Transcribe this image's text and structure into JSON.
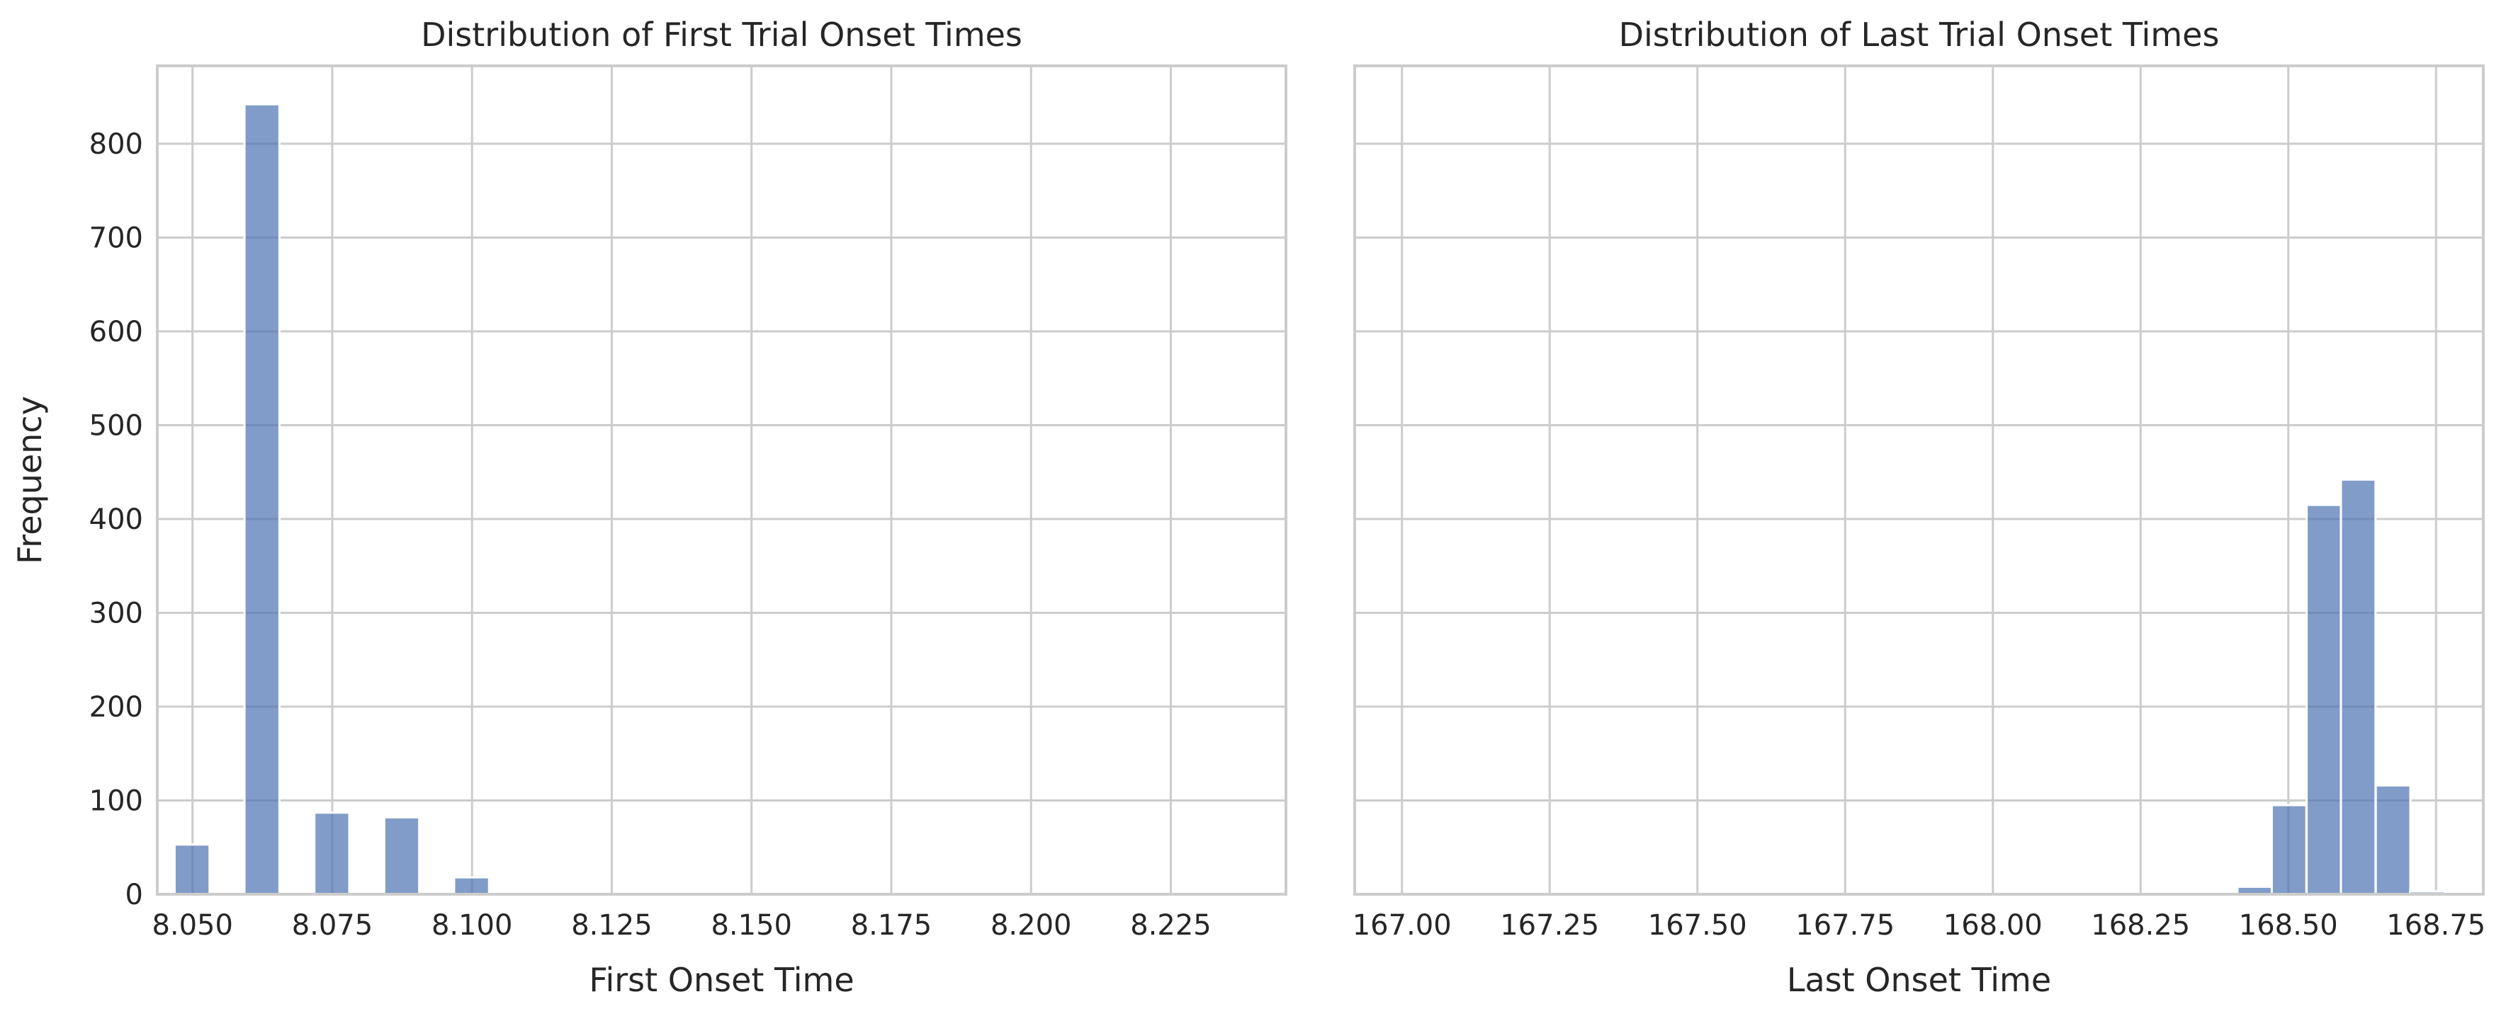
{
  "chart_data": [
    {
      "type": "bar",
      "title": "Distribution of First Trial Onset Times",
      "xlabel": "First Onset Time",
      "ylabel": "Frequency",
      "xlim": [
        8.0437,
        8.2456
      ],
      "ylim": [
        0,
        883
      ],
      "xticks": [
        "8.050",
        "8.075",
        "8.100",
        "8.125",
        "8.150",
        "8.175",
        "8.200",
        "8.225"
      ],
      "xtick_values": [
        8.05,
        8.075,
        8.1,
        8.125,
        8.15,
        8.175,
        8.2,
        8.225
      ],
      "yticks": [
        "0",
        "100",
        "200",
        "300",
        "400",
        "500",
        "600",
        "700",
        "800"
      ],
      "ytick_values": [
        0,
        100,
        200,
        300,
        400,
        500,
        600,
        700,
        800
      ],
      "bin_width": 0.00625,
      "bins_start": [
        8.0468,
        8.0593,
        8.0718,
        8.0843,
        8.0968
      ],
      "values": [
        53,
        842,
        87,
        82,
        18
      ],
      "grid": true,
      "color": "#4c72b0"
    },
    {
      "type": "bar",
      "title": "Distribution of Last Trial Onset Times",
      "xlabel": "Last Onset Time",
      "ylabel": "",
      "xlim": [
        166.92,
        168.83
      ],
      "ylim": [
        0,
        883
      ],
      "xticks": [
        "167.00",
        "167.25",
        "167.50",
        "167.75",
        "168.00",
        "168.25",
        "168.50",
        "168.75"
      ],
      "xtick_values": [
        167.0,
        167.25,
        167.5,
        167.75,
        168.0,
        168.25,
        168.5,
        168.75
      ],
      "yticks": [
        "0",
        "100",
        "200",
        "300",
        "400",
        "500",
        "600",
        "700",
        "800"
      ],
      "ytick_values": [
        0,
        100,
        200,
        300,
        400,
        500,
        600,
        700,
        800
      ],
      "bin_width": 0.0585,
      "bins_start": [
        167.01,
        167.068,
        167.127,
        167.185,
        167.244,
        167.302,
        167.361,
        167.419,
        167.478,
        167.536,
        167.595,
        167.653,
        167.712,
        167.77,
        167.829,
        167.887,
        167.946,
        168.004,
        168.063,
        168.121,
        168.18,
        168.238,
        168.297,
        168.355,
        168.414,
        168.472,
        168.531,
        168.589,
        168.648,
        168.706
      ],
      "values": [
        1,
        0,
        0,
        0,
        0,
        0,
        0,
        0,
        0,
        0,
        0,
        0,
        0,
        0,
        0,
        0,
        0,
        0,
        0,
        0,
        0,
        0,
        1,
        2,
        8,
        95,
        415,
        442,
        116,
        3
      ],
      "grid": true,
      "color": "#4c72b0"
    }
  ]
}
